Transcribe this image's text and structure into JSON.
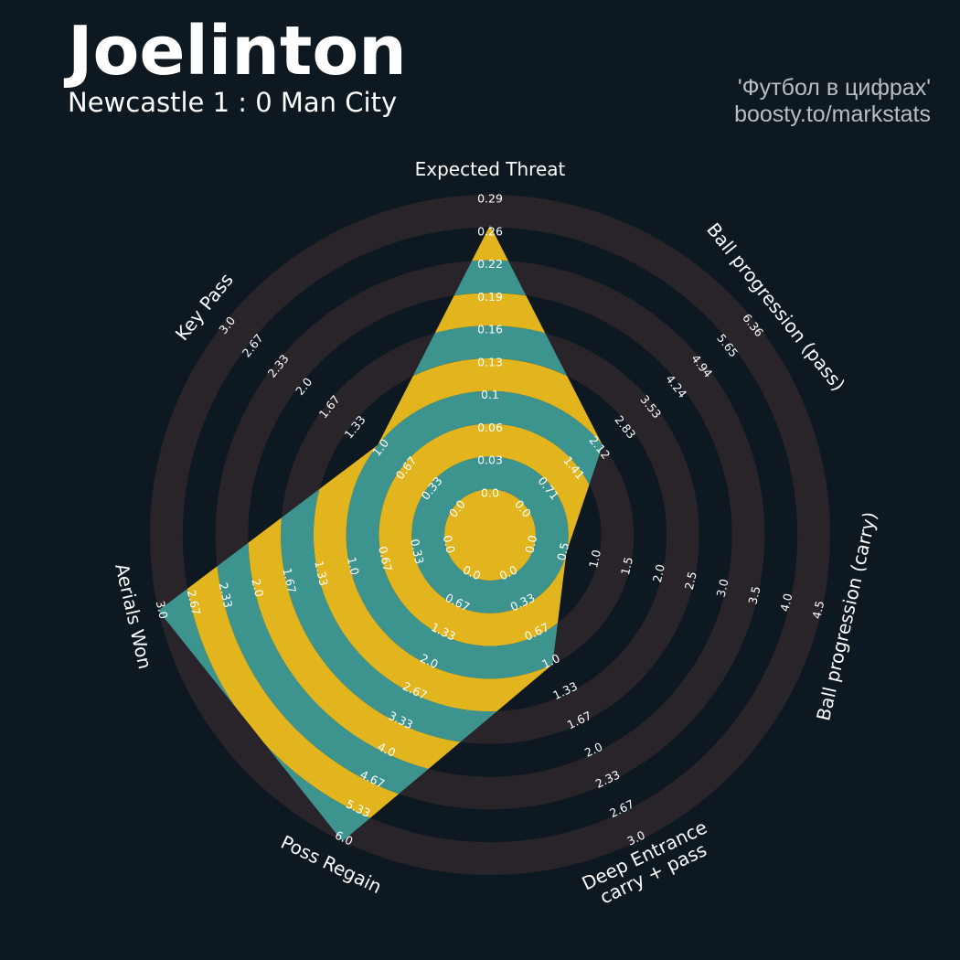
{
  "header": {
    "player": "Joelinton",
    "match": "Newcastle 1 : 0 Man City",
    "credit_line1": "'Футбол в цифрах'",
    "credit_line2": "boosty.to/markstats"
  },
  "colors": {
    "background": "#0e1820",
    "ring_band": "#28242a",
    "teal": "#3d948e",
    "gold": "#e2b51f",
    "text": "#ffffff",
    "credit": "#b9bec3"
  },
  "chart_data": {
    "type": "radar",
    "grid": "concentric alternating bands",
    "params": [
      {
        "label": [
          "Expected Threat"
        ],
        "ticks": [
          "0.0",
          "0.03",
          "0.06",
          "0.1",
          "0.13",
          "0.16",
          "0.19",
          "0.22",
          "0.26",
          "0.29"
        ],
        "range": [
          0.0,
          0.29
        ],
        "value": 0.26
      },
      {
        "label": [
          "Ball progression (pass)"
        ],
        "ticks": [
          "0.0",
          "0.71",
          "1.41",
          "2.12",
          "2.83",
          "3.53",
          "4.24",
          "4.94",
          "5.65",
          "6.36"
        ],
        "range": [
          0.0,
          6.36
        ],
        "value": 2.12
      },
      {
        "label": [
          "Ball progression (carry)"
        ],
        "ticks": [
          "0.0",
          "0.5",
          "1.0",
          "1.5",
          "2.0",
          "2.5",
          "3.0",
          "3.5",
          "4.0",
          "4.5"
        ],
        "range": [
          0.0,
          4.5
        ],
        "value": 0.5
      },
      {
        "label": [
          "Deep Entrance",
          "carry + pass"
        ],
        "ticks": [
          "0.0",
          "0.33",
          "0.67",
          "1.0",
          "1.33",
          "1.67",
          "2.0",
          "2.33",
          "2.67",
          "3.0"
        ],
        "range": [
          0.0,
          3.0
        ],
        "value": 1.0
      },
      {
        "label": [
          "Poss Regain"
        ],
        "ticks": [
          "0.0",
          "0.67",
          "1.33",
          "2.0",
          "2.67",
          "3.33",
          "4.0",
          "4.67",
          "5.33",
          "6.0"
        ],
        "range": [
          0.0,
          6.0
        ],
        "value": 6.0
      },
      {
        "label": [
          "Aerials Won"
        ],
        "ticks": [
          "0.0",
          "0.33",
          "0.67",
          "1.0",
          "1.33",
          "1.67",
          "2.0",
          "2.33",
          "2.67",
          "3.0"
        ],
        "range": [
          0.0,
          3.0
        ],
        "value": 3.0
      },
      {
        "label": [
          "Key Pass"
        ],
        "ticks": [
          "0.0",
          "0.33",
          "0.67",
          "1.0",
          "1.33",
          "1.67",
          "2.0",
          "2.33",
          "2.67",
          "3.0"
        ],
        "range": [
          0.0,
          3.0
        ],
        "value": 1.0
      }
    ]
  }
}
